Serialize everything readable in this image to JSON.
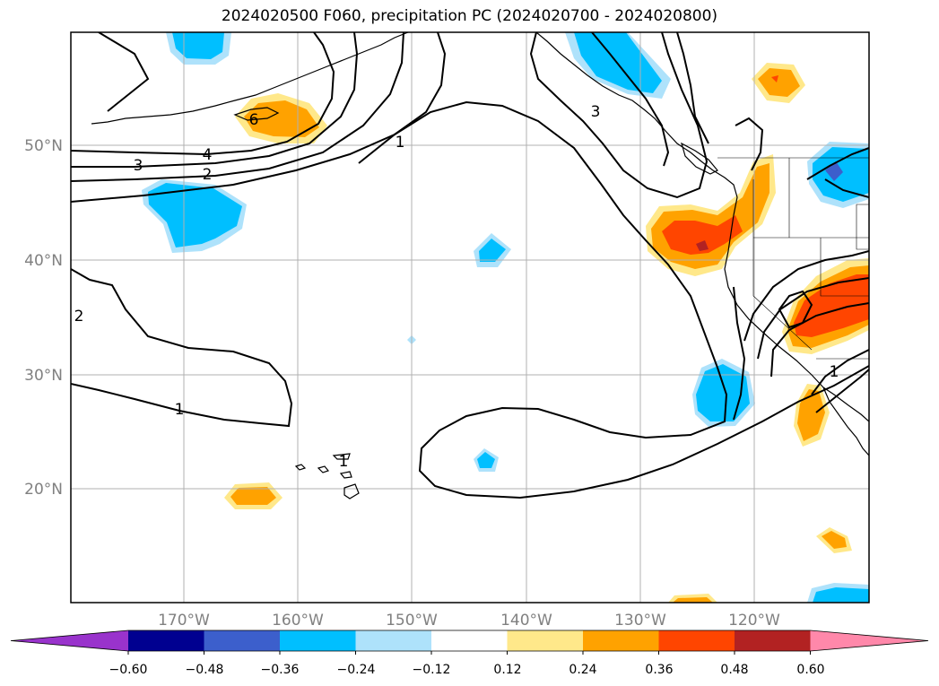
{
  "title": "2024020500 F060, precipitation PC (2024020700 - 2024020800)",
  "lat_labels": [
    "50°N",
    "40°N",
    "30°N",
    "20°N"
  ],
  "lon_labels": [
    "170°W",
    "160°W",
    "150°W",
    "140°W",
    "130°W",
    "120°W"
  ],
  "colorbar": {
    "colors": [
      "#9933cc",
      "#000090",
      "#3c5fcc",
      "#00bfff",
      "#aee2fb",
      "#ffffff",
      "#ffe88a",
      "#ffa200",
      "#ff4500",
      "#b22222",
      "#ff88aa"
    ],
    "tick_labels": [
      "−0.60",
      "−0.48",
      "−0.36",
      "−0.24",
      "−0.12",
      "0.12",
      "0.24",
      "0.36",
      "0.48",
      "0.60"
    ]
  },
  "contour_labels": [
    "6",
    "4",
    "3",
    "2",
    "1",
    "3",
    "2",
    "1",
    "1",
    "1"
  ],
  "colors": {
    "coast": "#000000",
    "grid": "#b0b0b0",
    "label": "#808080"
  }
}
